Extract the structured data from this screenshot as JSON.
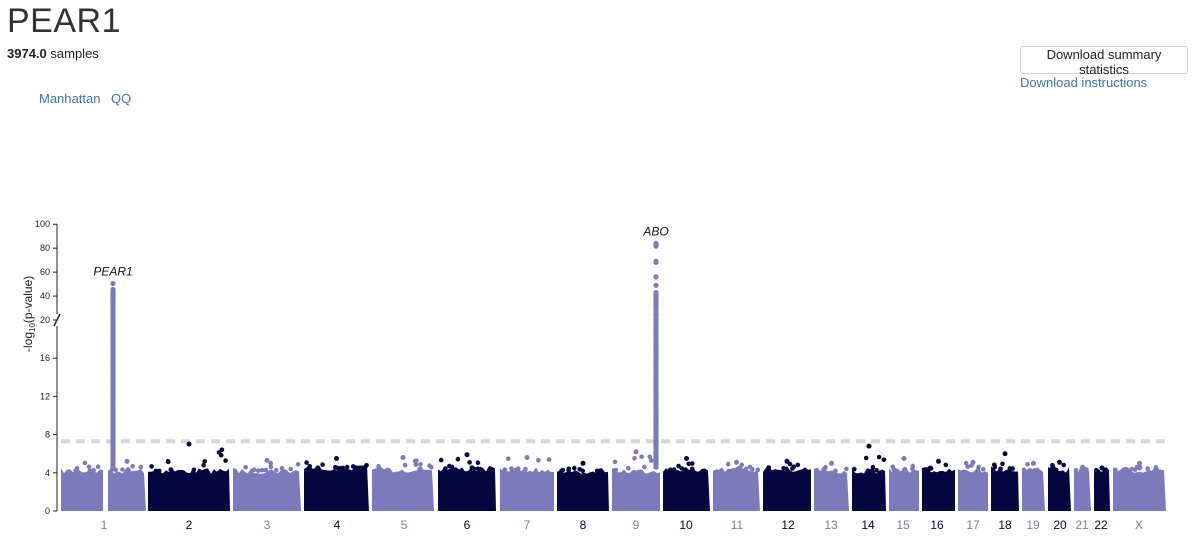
{
  "page": {
    "title": "PEAR1",
    "samples_count": "3974.0",
    "samples_label": "samples"
  },
  "tabs": [
    {
      "label": "Manhattan"
    },
    {
      "label": "QQ"
    }
  ],
  "actions": {
    "download_button": "Download summary statistics",
    "download_link": "Download instructions"
  },
  "colors": {
    "light": "#7b7bbb",
    "dark": "#03063f",
    "threshold": "#d6d6d6",
    "link": "#3d72b4"
  },
  "chart_data": {
    "type": "scatter",
    "title": "",
    "xlabel": "",
    "ylabel_base": "-log",
    "ylabel_sub": "10",
    "ylabel_rest": "(p-value)",
    "ylim": [
      0,
      100
    ],
    "y_axis_break": 20,
    "yticks_lower": [
      0,
      4,
      8,
      12,
      16,
      20
    ],
    "yticks_upper": [
      40,
      60,
      80,
      100
    ],
    "significance_threshold": 7.3,
    "chromosomes": [
      {
        "name": "1",
        "baseline_max": 4.2,
        "peak": 5.2
      },
      {
        "name": "2",
        "baseline_max": 4.2,
        "peak": 7.0
      },
      {
        "name": "3",
        "baseline_max": 4.2,
        "peak": 5.3
      },
      {
        "name": "4",
        "baseline_max": 4.5,
        "peak": 5.5
      },
      {
        "name": "5",
        "baseline_max": 4.3,
        "peak": 5.6
      },
      {
        "name": "6",
        "baseline_max": 4.4,
        "peak": 5.9
      },
      {
        "name": "7",
        "baseline_max": 4.3,
        "peak": 5.6
      },
      {
        "name": "8",
        "baseline_max": 4.2,
        "peak": 5.0
      },
      {
        "name": "9",
        "baseline_max": 4.2,
        "peak": 6.2
      },
      {
        "name": "10",
        "baseline_max": 4.3,
        "peak": 5.5
      },
      {
        "name": "11",
        "baseline_max": 4.3,
        "peak": 5.1
      },
      {
        "name": "12",
        "baseline_max": 4.4,
        "peak": 5.2
      },
      {
        "name": "13",
        "baseline_max": 4.2,
        "peak": 5.0
      },
      {
        "name": "14",
        "baseline_max": 4.2,
        "peak": 6.8
      },
      {
        "name": "15",
        "baseline_max": 4.3,
        "peak": 5.5
      },
      {
        "name": "16",
        "baseline_max": 4.3,
        "peak": 5.2
      },
      {
        "name": "17",
        "baseline_max": 4.3,
        "peak": 5.1
      },
      {
        "name": "18",
        "baseline_max": 4.4,
        "peak": 6.0
      },
      {
        "name": "19",
        "baseline_max": 4.2,
        "peak": 5.0
      },
      {
        "name": "20",
        "baseline_max": 4.3,
        "peak": 5.1
      },
      {
        "name": "21",
        "baseline_max": 4.1,
        "peak": 4.6
      },
      {
        "name": "22",
        "baseline_max": 4.1,
        "peak": 4.5
      },
      {
        "name": "X",
        "baseline_max": 4.3,
        "peak": 5.0
      }
    ],
    "hits": [
      {
        "gene": "PEAR1",
        "chromosome": "1",
        "max": 50.5,
        "values": [
          50.5,
          45.5,
          44.8,
          44.0,
          43.2,
          42.5,
          41.7,
          41.0,
          40.2,
          39.5,
          38.7,
          38.0,
          37.2,
          36.5,
          35.8,
          35.0,
          34.0,
          33.0,
          31.8,
          30.5,
          29.0,
          27.5,
          25.5,
          23.5,
          21.5,
          19.8,
          19.4,
          19.0,
          18.6,
          18.2,
          17.8,
          17.4,
          17.0,
          16.6,
          16.2,
          15.8,
          15.4,
          15.0,
          14.6,
          14.2,
          13.8,
          13.4,
          13.0,
          12.6,
          12.2,
          11.8,
          11.4,
          11.0,
          10.6,
          10.2,
          9.8,
          9.4,
          9.0,
          8.6,
          8.2,
          7.8,
          7.4,
          7.0,
          6.6,
          6.2,
          5.8,
          5.4,
          5.0
        ]
      },
      {
        "gene": "ABO",
        "chromosome": "9",
        "max": 84.0,
        "values": [
          84.0,
          83.5,
          83.0,
          82.4,
          81.7,
          69.0,
          68.2,
          56.0,
          49.0,
          43.0,
          42.0,
          41.0,
          40.0,
          38.5,
          37.0,
          35.5,
          34.5,
          33.5,
          32.5,
          31.0,
          30.0,
          28.0,
          25.5,
          23.5,
          21.0,
          19.3,
          18.2,
          17.0,
          16.9,
          16.8,
          16.6,
          16.4,
          14.6,
          12.4,
          12.2,
          10.5,
          10.2,
          9.8,
          9.5,
          9.2,
          8.9,
          8.6,
          8.3,
          8.0,
          7.7,
          7.4,
          7.1,
          6.8,
          6.5,
          6.2,
          5.9,
          5.6,
          5.3,
          5.0
        ]
      }
    ]
  }
}
